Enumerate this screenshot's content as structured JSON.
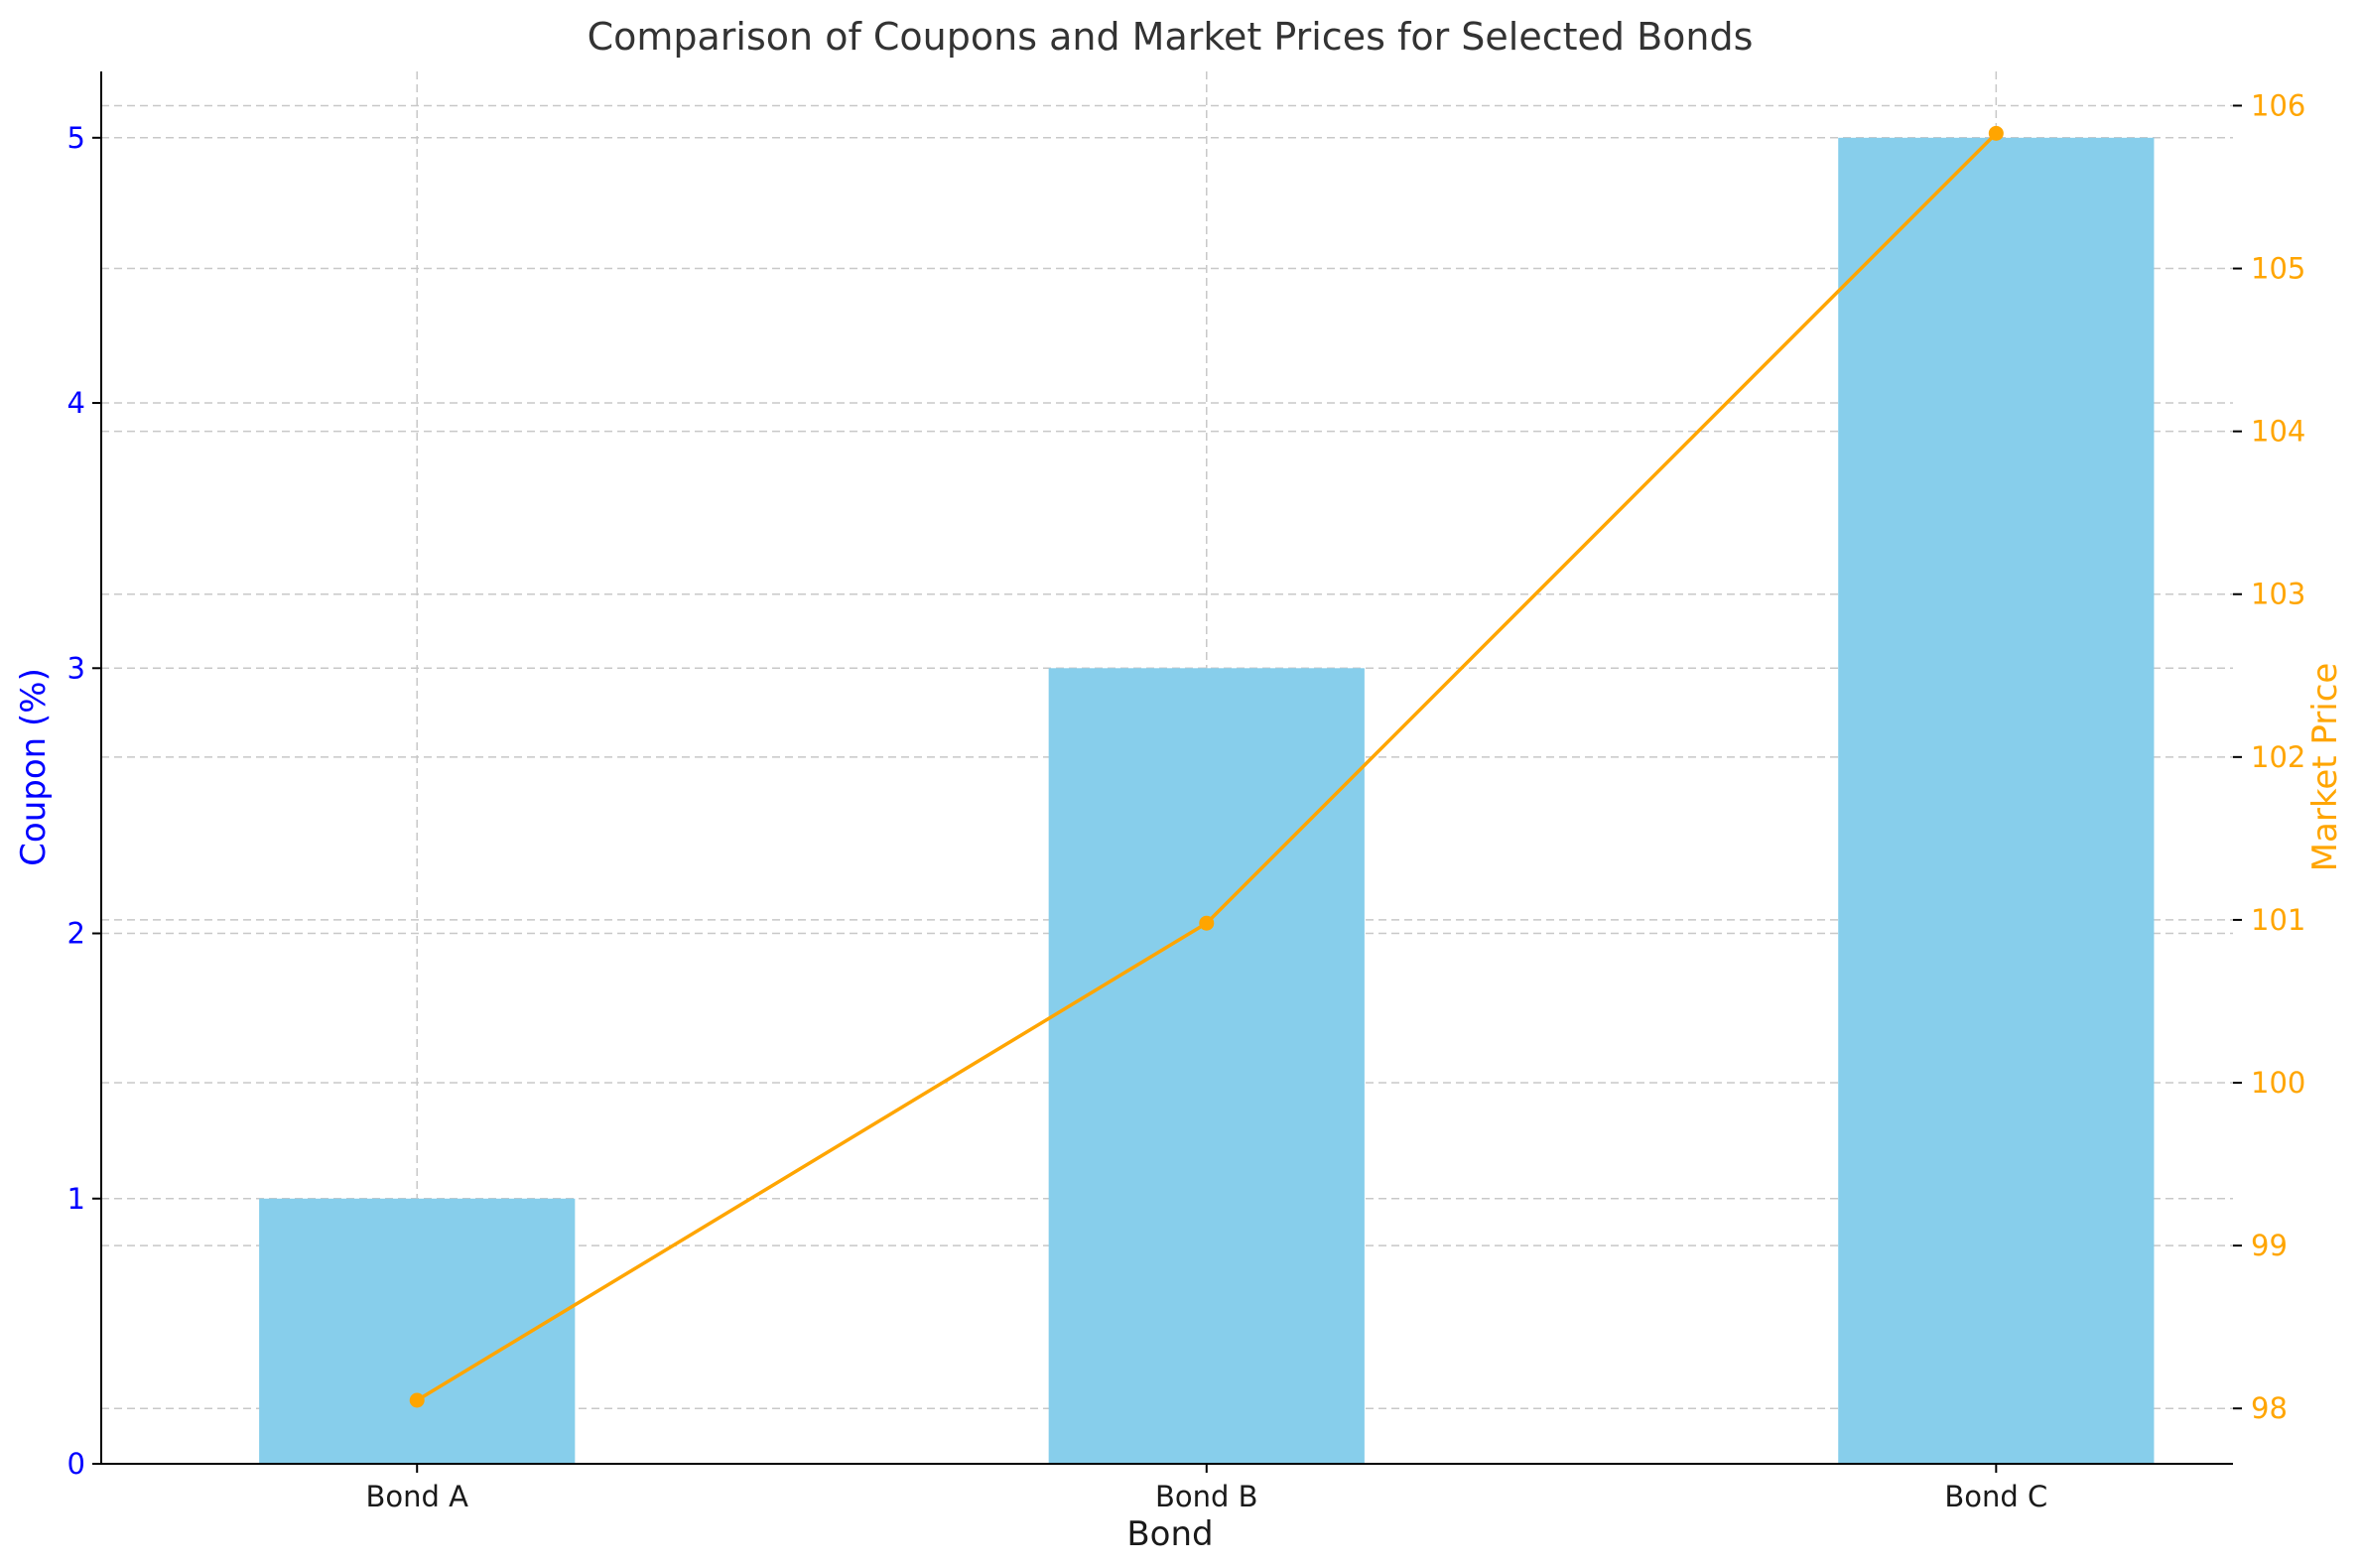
{
  "chart_data": {
    "type": "bar",
    "title": "Comparison of Coupons and Market Prices for Selected Bonds",
    "xlabel": "Bond",
    "categories": [
      "Bond A",
      "Bond B",
      "Bond C"
    ],
    "series": [
      {
        "name": "Coupon (%)",
        "type": "bar",
        "axis": "left",
        "color": "#87ceeb",
        "values": [
          1,
          3,
          5
        ]
      },
      {
        "name": "Market Price",
        "type": "line",
        "axis": "right",
        "color": "#ffa500",
        "marker": "circle",
        "values": [
          98.05,
          100.98,
          105.83
        ]
      }
    ],
    "ylabel": "Coupon (%)",
    "ylabel_color": "#0000ff",
    "ylim": [
      0,
      5.25
    ],
    "yticks": [
      0,
      1,
      2,
      3,
      4,
      5
    ],
    "y2label": "Market Price",
    "y2label_color": "#ffa500",
    "y2lim": [
      97.66,
      106.21
    ],
    "y2ticks": [
      98,
      99,
      100,
      101,
      102,
      103,
      104,
      105,
      106
    ],
    "grid": true,
    "legend": false
  }
}
